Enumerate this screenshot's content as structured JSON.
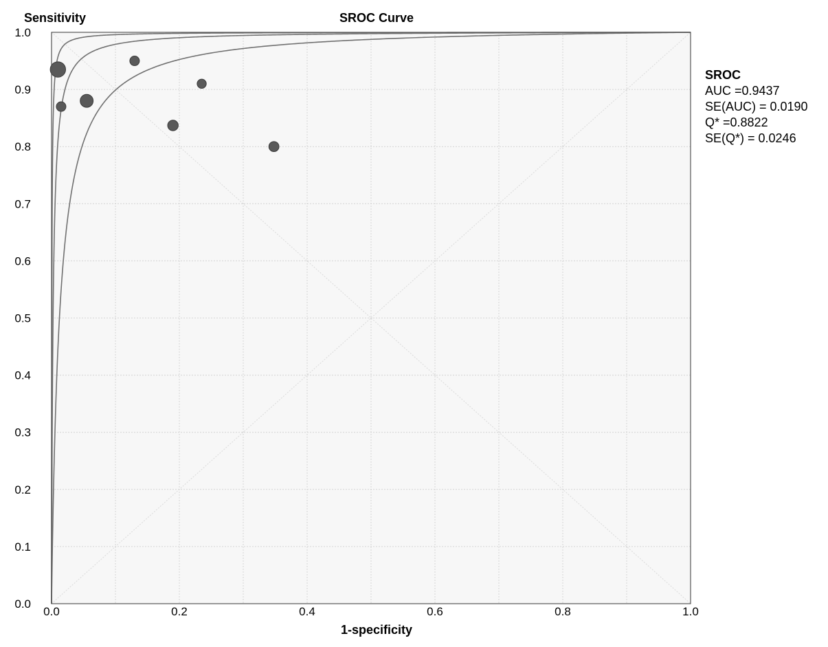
{
  "chart_data": {
    "type": "scatter",
    "title": "SROC Curve",
    "ylabel": "Sensitivity",
    "xlabel": "1-specificity",
    "xlim": [
      0,
      1
    ],
    "ylim": [
      0,
      1
    ],
    "grid": true,
    "x_ticks": [
      "0.0",
      "0.2",
      "0.4",
      "0.6",
      "0.8",
      "1.0"
    ],
    "y_ticks": [
      "0.0",
      "0.1",
      "0.2",
      "0.3",
      "0.4",
      "0.5",
      "0.6",
      "0.7",
      "0.8",
      "0.9",
      "1.0"
    ],
    "points": [
      {
        "x": 0.01,
        "y": 0.935,
        "weight": 1.6
      },
      {
        "x": 0.015,
        "y": 0.87,
        "weight": 1.0
      },
      {
        "x": 0.055,
        "y": 0.88,
        "weight": 1.35
      },
      {
        "x": 0.13,
        "y": 0.95,
        "weight": 1.0
      },
      {
        "x": 0.19,
        "y": 0.837,
        "weight": 1.1
      },
      {
        "x": 0.235,
        "y": 0.91,
        "weight": 0.95
      },
      {
        "x": 0.348,
        "y": 0.8,
        "weight": 1.05
      }
    ],
    "curves": [
      {
        "role": "upper-bound",
        "dor": 2200
      },
      {
        "role": "sroc",
        "dor": 420
      },
      {
        "role": "lower-bound",
        "dor": 80
      }
    ],
    "diagonals": true,
    "summary": {
      "heading": "SROC",
      "lines": [
        "AUC =0.9437",
        "SE(AUC) = 0.0190",
        "Q* =0.8822",
        "SE(Q*) = 0.0246"
      ]
    }
  },
  "colors": {
    "plot_bg": "#f7f7f7",
    "grid": "#d4d4d4",
    "axis": "#555555",
    "curve": "#707070",
    "point_fill": "#595959",
    "point_stroke": "#3a3a3a"
  }
}
